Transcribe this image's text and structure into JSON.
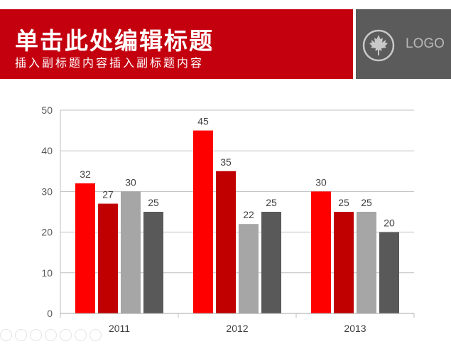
{
  "header": {
    "title": "单击此处编辑标题",
    "subtitle": "插入副标题内容插入副标题内容",
    "logo_text": "LOGO",
    "logo_icon": "maple-leaf-icon"
  },
  "colors": {
    "header_red": "#c4000f",
    "header_gray": "#5b5b5b",
    "series": [
      "#ff0000",
      "#c00000",
      "#a6a6a6",
      "#595959"
    ]
  },
  "chart_data": {
    "type": "bar",
    "title": "",
    "xlabel": "",
    "ylabel": "",
    "categories": [
      "2011",
      "2012",
      "2013"
    ],
    "series": [
      {
        "values": [
          32,
          45,
          30
        ]
      },
      {
        "values": [
          27,
          35,
          25
        ]
      },
      {
        "values": [
          30,
          22,
          25
        ]
      },
      {
        "values": [
          25,
          25,
          20
        ]
      }
    ],
    "ylim": [
      0,
      50
    ],
    "yticks": [
      0,
      10,
      20,
      30,
      40,
      50
    ],
    "grid": true,
    "data_labels": true,
    "legend": "none"
  }
}
